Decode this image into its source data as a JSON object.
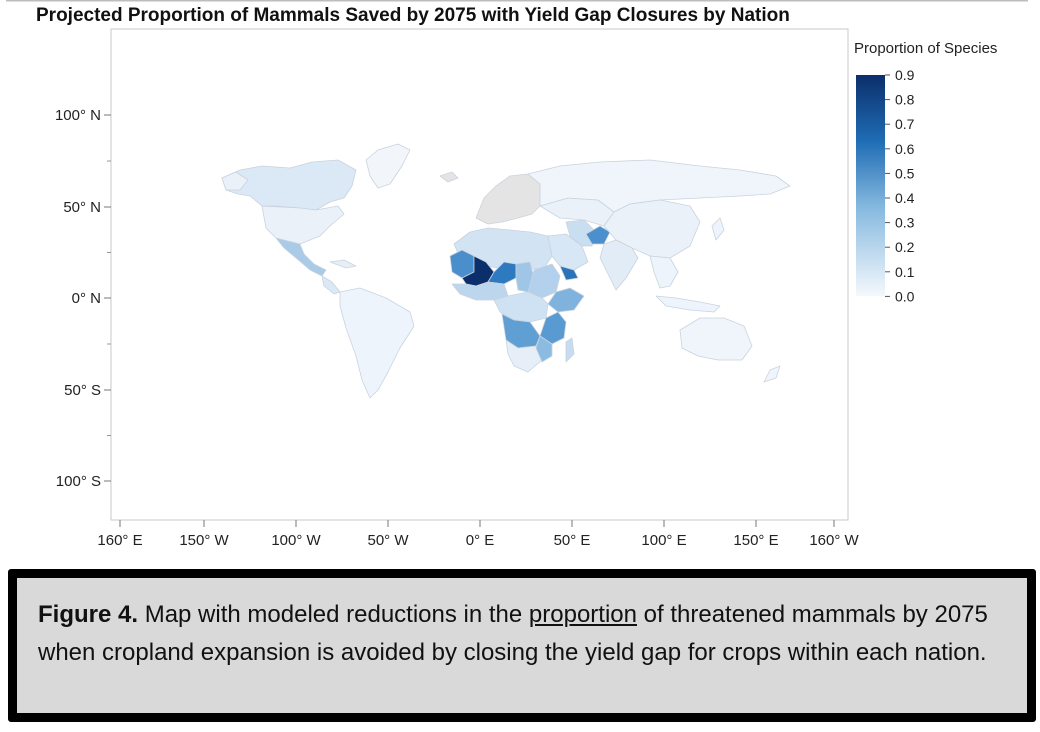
{
  "title": "Projected Proportion of Mammals Saved by 2075 with Yield Gap Closures by Nation",
  "legend": {
    "title": "Proportion of Species",
    "ticks": [
      "0.9",
      "0.8",
      "0.7",
      "0.6",
      "0.5",
      "0.4",
      "0.3",
      "0.2",
      "0.1",
      "0.0"
    ],
    "color_high": "#0b2f6b",
    "color_low": "#f4f8fd"
  },
  "axes": {
    "y_ticks": [
      "100° N",
      "50° N",
      "0° N",
      "50° S",
      "100° S"
    ],
    "x_ticks": [
      "160° E",
      "150° W",
      "100° W",
      "50° W",
      "0° E",
      "50° E",
      "100° E",
      "150° E",
      "160° W"
    ]
  },
  "chart_data": {
    "type": "choropleth",
    "title": "Projected Proportion of Mammals Saved by 2075 with Yield Gap Closures by Nation",
    "legend_title": "Proportion of Species",
    "color_range": [
      0.0,
      0.9
    ],
    "regions": [
      {
        "region": "Mali",
        "value": 0.9
      },
      {
        "region": "Mauritania",
        "value": 0.5
      },
      {
        "region": "Niger",
        "value": 0.6
      },
      {
        "region": "Chad",
        "value": 0.4
      },
      {
        "region": "Burkina Faso",
        "value": 0.6
      },
      {
        "region": "Senegal",
        "value": 0.5
      },
      {
        "region": "Nigeria",
        "value": 0.3
      },
      {
        "region": "Algeria",
        "value": 0.2
      },
      {
        "region": "Libya",
        "value": 0.2
      },
      {
        "region": "Sudan",
        "value": 0.3
      },
      {
        "region": "Ethiopia",
        "value": 0.4
      },
      {
        "region": "Kenya",
        "value": 0.3
      },
      {
        "region": "Tanzania",
        "value": 0.4
      },
      {
        "region": "Angola",
        "value": 0.4
      },
      {
        "region": "Zambia",
        "value": 0.5
      },
      {
        "region": "Mozambique",
        "value": 0.3
      },
      {
        "region": "Yemen",
        "value": 0.6
      },
      {
        "region": "Afghanistan",
        "value": 0.5
      },
      {
        "region": "Saudi Arabia",
        "value": 0.2
      },
      {
        "region": "Iran",
        "value": 0.2
      },
      {
        "region": "Mexico",
        "value": 0.3
      },
      {
        "region": "Canada",
        "value": 0.15
      },
      {
        "region": "Brazil",
        "value": 0.05
      },
      {
        "region": "United States",
        "value": 0.05
      },
      {
        "region": "Russia",
        "value": 0.02
      },
      {
        "region": "China",
        "value": 0.05
      },
      {
        "region": "India",
        "value": 0.1
      },
      {
        "region": "Australia",
        "value": 0.05
      },
      {
        "region": "Madagascar",
        "value": 0.2
      }
    ]
  },
  "caption": {
    "figure_label": "Figure 4.",
    "text_before": " Map with modeled reductions in the ",
    "underlined": "proportion",
    "text_after": " of threatened mammals by 2075 when cropland expansion is avoided by closing the yield gap for crops within each nation."
  }
}
